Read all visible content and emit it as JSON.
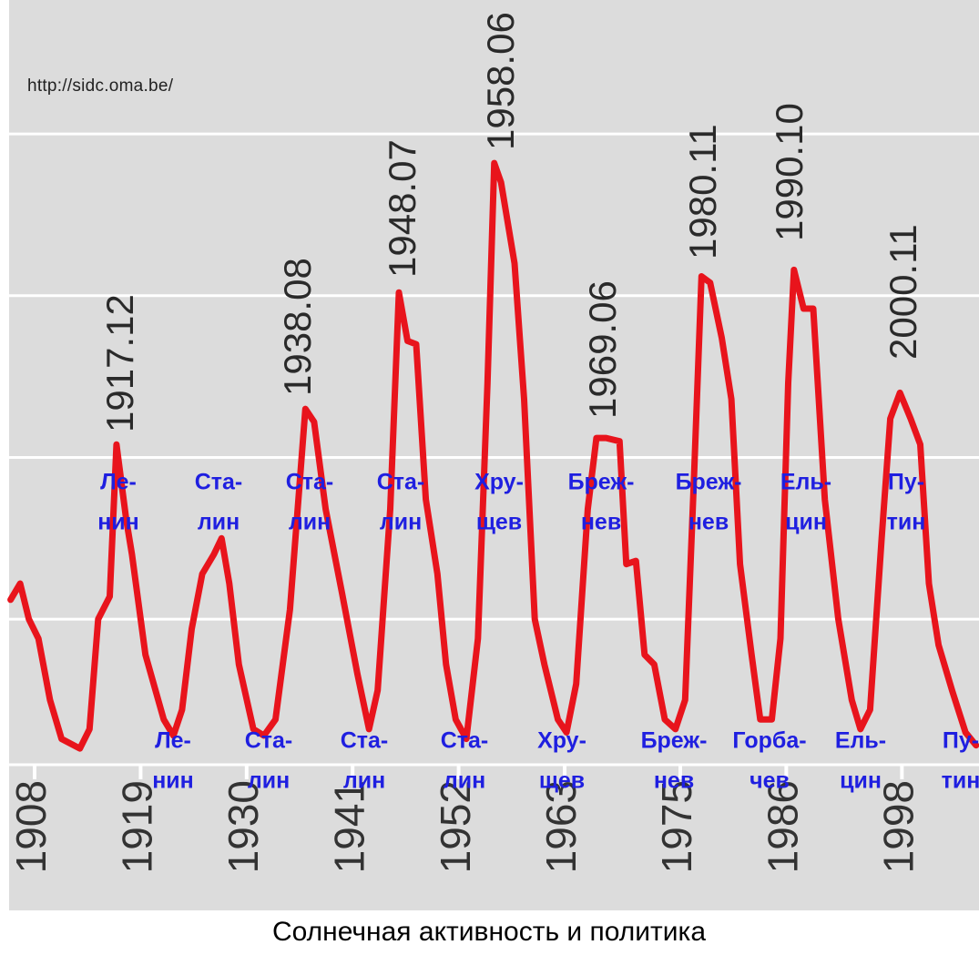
{
  "chart_data": {
    "type": "line",
    "caption": "Солнечная активность и политика",
    "source": "http://sidc.oma.be/",
    "color": "#e8141c",
    "grid": true,
    "xlim": [
      1905.5,
      2006
    ],
    "ylim": [
      5,
      240
    ],
    "xticks": [
      1908,
      1919,
      1930,
      1941,
      1952,
      1963,
      1975,
      1986,
      1998
    ],
    "yticks": [
      50,
      100,
      150,
      200
    ],
    "x": [
      1905.5,
      1906.5,
      1907.4,
      1908.4,
      1909.6,
      1910.8,
      1912.7,
      1913.7,
      1914.6,
      1915.8,
      1916.5,
      1917.5,
      1918.1,
      1919.5,
      1921.4,
      1922.4,
      1923.3,
      1924.3,
      1925.4,
      1926.6,
      1927.4,
      1928.2,
      1929.2,
      1930.7,
      1931.8,
      1933.0,
      1934.5,
      1936.1,
      1937.0,
      1938.2,
      1939.9,
      1941.5,
      1942.7,
      1943.6,
      1944.9,
      1945.8,
      1946.7,
      1947.6,
      1948.6,
      1949.8,
      1950.7,
      1951.7,
      1952.8,
      1954.0,
      1955.0,
      1955.7,
      1956.4,
      1957.8,
      1958.8,
      1959.9,
      1960.9,
      1962.3,
      1963.2,
      1964.2,
      1965.4,
      1966.3,
      1967.3,
      1968.7,
      1969.4,
      1970.4,
      1971.3,
      1972.3,
      1973.4,
      1974.5,
      1975.5,
      1976.4,
      1977.2,
      1978.1,
      1979.3,
      1980.3,
      1981.2,
      1982.4,
      1983.3,
      1984.5,
      1985.4,
      1986.2,
      1986.8,
      1987.8,
      1988.8,
      1990.0,
      1991.4,
      1992.8,
      1993.7,
      1994.7,
      1995.9,
      1996.8,
      1997.8,
      1998.9,
      1999.9,
      2000.8,
      2001.8,
      2003.2,
      2004.6,
      2005.7
    ],
    "values": [
      56,
      61,
      50,
      44,
      25,
      13,
      10,
      16,
      50,
      57,
      104,
      81,
      70,
      39,
      19,
      14,
      22,
      47,
      64,
      70,
      75,
      61,
      36,
      16,
      14,
      19,
      53,
      115,
      111,
      84,
      58,
      33,
      16,
      28,
      84,
      151,
      136,
      135,
      87,
      64,
      36,
      19,
      13,
      44,
      123,
      191,
      185,
      160,
      118,
      50,
      36,
      19,
      15,
      30,
      84,
      106,
      106,
      105,
      67,
      68,
      39,
      36,
      19,
      16,
      25,
      92,
      156,
      154,
      137,
      118,
      67,
      39,
      19,
      19,
      44,
      123,
      158,
      146,
      146,
      87,
      50,
      25,
      16,
      22,
      75,
      112,
      120,
      112,
      104,
      61,
      42,
      28,
      15,
      11
    ],
    "annotations": {
      "peaks": [
        "1917.12",
        "1938.08",
        "1948.07",
        "1958.06",
        "1969.06",
        "1980.11",
        "1990.10",
        "2000.11"
      ],
      "leaders_high": [
        [
          "Ле-",
          "нин"
        ],
        [
          "Ста-",
          "лин"
        ],
        [
          "Ста-",
          "лин"
        ],
        [
          "Ста-",
          "лин"
        ],
        [
          "Хру-",
          "щев"
        ],
        [
          "Бреж-",
          "нев"
        ],
        [
          "Бреж-",
          "нев"
        ],
        [
          "Ель-",
          "цин"
        ],
        [
          "Пу-",
          "тин"
        ]
      ],
      "leaders_low": [
        [
          "Ле-",
          "нин"
        ],
        [
          "Ста-",
          "лин"
        ],
        [
          "Ста-",
          "лин"
        ],
        [
          "Ста-",
          "лин"
        ],
        [
          "Хру-",
          "щев"
        ],
        [
          "Бреж-",
          "нев"
        ],
        [
          "Горба-",
          "чев"
        ],
        [
          "Ель-",
          "цин"
        ],
        [
          "Пу-",
          "тин"
        ]
      ]
    }
  }
}
